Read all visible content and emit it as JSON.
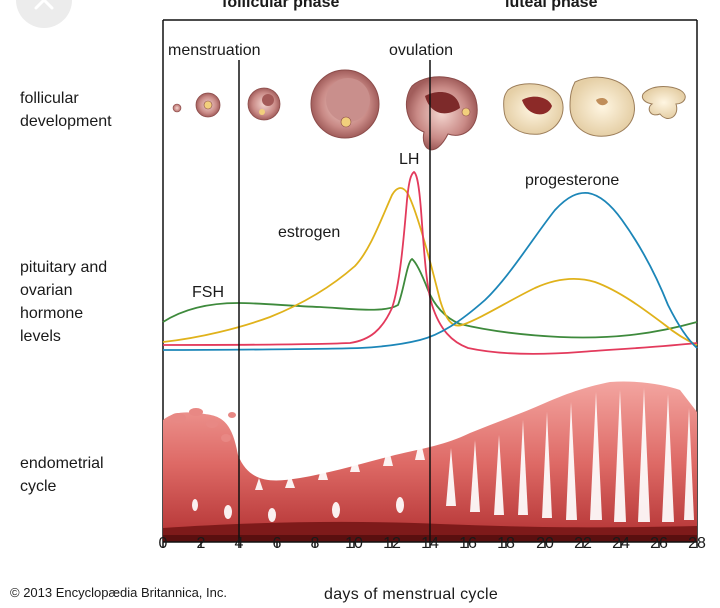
{
  "phases": {
    "follicular": "follicular phase",
    "luteal": "luteal phase"
  },
  "markers": {
    "menstruation": "menstruation",
    "ovulation": "ovulation"
  },
  "row_labels": {
    "follicular_development": [
      "follicular",
      "development"
    ],
    "hormones": [
      "pituitary and",
      "ovarian",
      "hormone",
      "levels"
    ],
    "endometrial": [
      "endometrial",
      "cycle"
    ]
  },
  "curve_labels": {
    "lh": "LH",
    "estrogen": "estrogen",
    "fsh": "FSH",
    "progesterone": "progesterone"
  },
  "colors": {
    "lh": "#e33a5c",
    "estrogen": "#e0b21b",
    "fsh": "#3e8a3c",
    "progesterone": "#1c86b8",
    "endometrium": "#e06e6e",
    "endometrium_dark": "#8a1a1a"
  },
  "axis": {
    "ticks": [
      "0",
      "2",
      "4",
      "6",
      "8",
      "10",
      "12",
      "14",
      "16",
      "18",
      "20",
      "22",
      "24",
      "26",
      "28"
    ],
    "xlabel": "days of menstrual cycle"
  },
  "copyright": "© 2013 Encyclopædia Britannica, Inc.",
  "icons": {
    "close": "close-icon"
  }
}
